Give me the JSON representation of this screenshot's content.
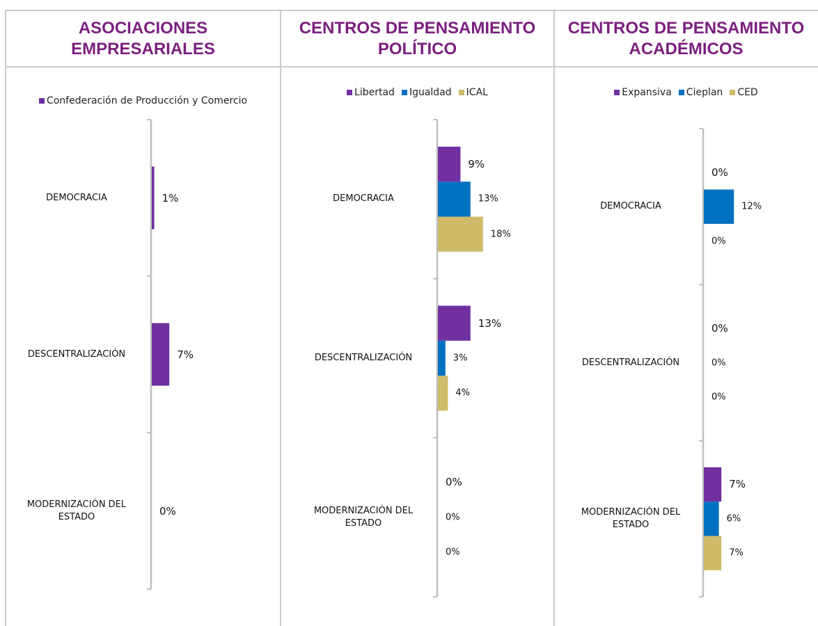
{
  "chart_data": [
    {
      "type": "bar",
      "title": "ASOCIACIONES EMPRESARIALES",
      "categories": [
        "DEMOCRACIA",
        "DESCENTRALIZACIÓN",
        "MODERNIZACIÓN DEL ESTADO"
      ],
      "series": [
        {
          "name": "Confederación de Producción y Comercio",
          "color": "#7030a0",
          "values": [
            1,
            7,
            0
          ],
          "value_labels": [
            "1%",
            "7%",
            "0%"
          ]
        }
      ]
    },
    {
      "type": "bar",
      "title": "CENTROS DE PENSAMIENTO POLÍTICO",
      "categories": [
        "DEMOCRACIA",
        "DESCENTRALIZACIÓN",
        "MODERNIZACIÓN DEL ESTADO"
      ],
      "series": [
        {
          "name": "Libertad",
          "color": "#7030a0",
          "values": [
            9,
            13,
            0
          ],
          "value_labels": [
            "9%",
            "13%",
            "0%"
          ]
        },
        {
          "name": "Igualdad",
          "color": "#0070c0",
          "values": [
            13,
            3,
            0
          ],
          "value_labels": [
            "13%",
            "3%",
            "0%"
          ]
        },
        {
          "name": "ICAL",
          "color": "#cfbb69",
          "values": [
            18,
            4,
            0
          ],
          "value_labels": [
            "18%",
            "4%",
            "0%"
          ]
        }
      ]
    },
    {
      "type": "bar",
      "title": "CENTROS DE PENSAMIENTO ACADÉMICOS",
      "categories": [
        "DEMOCRACIA",
        "DESCENTRALIZACIÓN",
        "MODERNIZACIÓN DEL ESTADO"
      ],
      "series": [
        {
          "name": "Expansiva",
          "color": "#7030a0",
          "values": [
            0,
            0,
            7
          ],
          "value_labels": [
            "0%",
            "0%",
            "7%"
          ]
        },
        {
          "name": "Cieplan",
          "color": "#0070c0",
          "values": [
            12,
            0,
            6
          ],
          "value_labels": [
            "12%",
            "0%",
            "6%"
          ]
        },
        {
          "name": "CED",
          "color": "#cfbb69",
          "values": [
            0,
            0,
            7
          ],
          "value_labels": [
            "0%",
            "0%",
            "7%"
          ]
        }
      ]
    }
  ]
}
